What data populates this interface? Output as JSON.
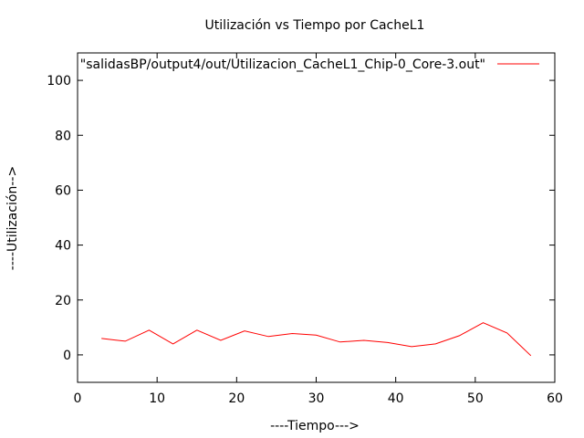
{
  "chart_data": {
    "type": "line",
    "title": "Utilización vs Tiempo por CacheL1",
    "xlabel": "----Tiempo--->",
    "ylabel": "----Utilización-->",
    "xlim": [
      0,
      60
    ],
    "ylim": [
      -10,
      110
    ],
    "xticks": [
      0,
      10,
      20,
      30,
      40,
      50,
      60
    ],
    "yticks": [
      0,
      20,
      40,
      60,
      80,
      100
    ],
    "grid": false,
    "legend_position": "top-right",
    "series": [
      {
        "name": "\"salidasBP/output4/out/Utilizacion_CacheL1_Chip-0_Core-3.out\"",
        "color": "#ff0000",
        "x": [
          3,
          6,
          9,
          12,
          15,
          18,
          21,
          24,
          27,
          30,
          33,
          36,
          39,
          42,
          45,
          48,
          51,
          54,
          57
        ],
        "y": [
          6,
          5,
          9,
          4,
          9,
          5.3,
          8.7,
          6.7,
          7.8,
          7.2,
          4.7,
          5.3,
          4.5,
          3,
          4,
          7,
          11.7,
          8,
          -0.3
        ]
      }
    ]
  }
}
